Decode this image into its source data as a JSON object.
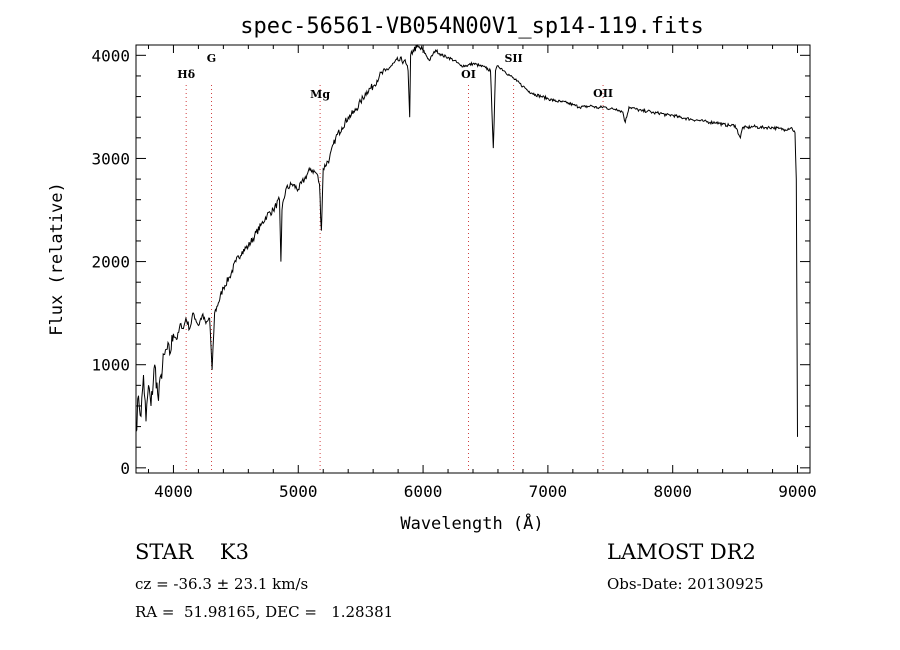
{
  "chart_data": {
    "type": "line",
    "title": "spec-56561-VB054N00V1_sp14-119.fits",
    "xlabel": "Wavelength (Å)",
    "ylabel": "Flux (relative)",
    "xlim": [
      3700,
      9100
    ],
    "ylim": [
      -50,
      4100
    ],
    "xticks": [
      4000,
      5000,
      6000,
      7000,
      8000,
      9000
    ],
    "yticks": [
      0,
      1000,
      2000,
      3000,
      4000
    ],
    "series": [
      {
        "x": [
          3700,
          3720,
          3740,
          3760,
          3780,
          3800,
          3820,
          3850,
          3880,
          3900,
          3930,
          3950,
          3970,
          4000,
          4030,
          4060,
          4080,
          4100,
          4130,
          4160,
          4200,
          4230,
          4260,
          4290,
          4300,
          4310,
          4330,
          4360,
          4400,
          4450,
          4500,
          4550,
          4600,
          4650,
          4700,
          4750,
          4800,
          4850,
          4861,
          4870,
          4900,
          4950,
          5000,
          5050,
          5100,
          5150,
          5170,
          5185,
          5200,
          5250,
          5300,
          5350,
          5400,
          5450,
          5500,
          5550,
          5600,
          5650,
          5700,
          5750,
          5800,
          5850,
          5880,
          5893,
          5900,
          5920,
          5950,
          6000,
          6050,
          6100,
          6150,
          6200,
          6250,
          6300,
          6350,
          6400,
          6450,
          6500,
          6540,
          6563,
          6580,
          6600,
          6650,
          6700,
          6750,
          6800,
          6850,
          6900,
          6950,
          7000,
          7050,
          7100,
          7150,
          7200,
          7250,
          7300,
          7350,
          7400,
          7450,
          7500,
          7550,
          7600,
          7620,
          7650,
          7700,
          7750,
          7800,
          7850,
          7900,
          7950,
          8000,
          8050,
          8100,
          8150,
          8200,
          8250,
          8300,
          8350,
          8400,
          8450,
          8500,
          8542,
          8560,
          8600,
          8650,
          8700,
          8750,
          8800,
          8850,
          8900,
          8950,
          8980,
          8990,
          9000
        ],
        "y": [
          350,
          700,
          500,
          900,
          450,
          800,
          600,
          1000,
          650,
          900,
          1100,
          1150,
          1100,
          1300,
          1250,
          1400,
          1350,
          1450,
          1350,
          1500,
          1380,
          1480,
          1400,
          1450,
          1200,
          950,
          1500,
          1600,
          1750,
          1850,
          2000,
          2100,
          2150,
          2250,
          2350,
          2450,
          2500,
          2600,
          2000,
          2500,
          2700,
          2750,
          2700,
          2800,
          2900,
          2850,
          2750,
          2300,
          2900,
          3000,
          3200,
          3300,
          3400,
          3450,
          3550,
          3650,
          3700,
          3800,
          3850,
          3900,
          3950,
          3950,
          3850,
          3400,
          4000,
          4050,
          4080,
          4050,
          3950,
          4050,
          4000,
          3980,
          3950,
          3900,
          3900,
          3920,
          3900,
          3880,
          3850,
          3100,
          3850,
          3900,
          3850,
          3800,
          3750,
          3700,
          3650,
          3620,
          3600,
          3580,
          3560,
          3550,
          3540,
          3520,
          3500,
          3500,
          3510,
          3490,
          3500,
          3480,
          3480,
          3450,
          3350,
          3500,
          3480,
          3460,
          3460,
          3440,
          3440,
          3420,
          3420,
          3400,
          3390,
          3380,
          3370,
          3360,
          3350,
          3350,
          3330,
          3320,
          3320,
          3200,
          3300,
          3300,
          3310,
          3300,
          3300,
          3300,
          3290,
          3280,
          3300,
          3250,
          2800,
          300
        ]
      }
    ],
    "line_markers": [
      {
        "label": "Hδ",
        "x": 4102
      },
      {
        "label": "G",
        "x": 4305
      },
      {
        "label": "Mg",
        "x": 5175
      },
      {
        "label": "OI",
        "x": 6364
      },
      {
        "label": "SII",
        "x": 6725
      },
      {
        "label": "OII",
        "x": 7442
      }
    ]
  },
  "info": {
    "class_line": "STAR    K3",
    "cz_line": "cz = -36.3 ± 23.1 km/s",
    "radec_line": "RA =  51.98165, DEC =   1.28381",
    "survey": "LAMOST DR2",
    "obs_date": "Obs-Date: 20130925"
  }
}
